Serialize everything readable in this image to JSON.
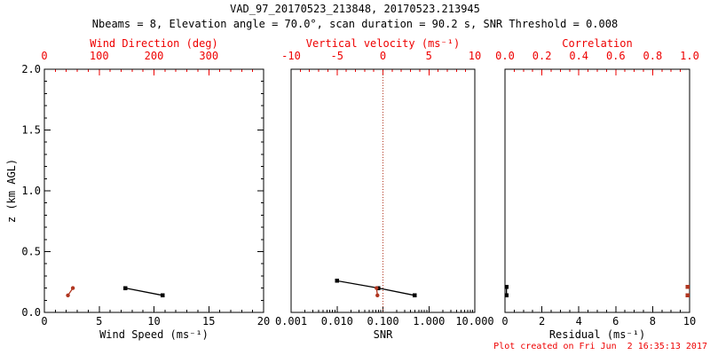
{
  "header": {
    "title": "VAD_97_20170523_213848, 20170523.213945",
    "subtitle": "Nbeams = 8, Elevation angle = 70.0°, scan duration = 90.2 s, SNR Threshold = 0.008"
  },
  "y_axis": {
    "title": "z (km AGL)",
    "min": 0,
    "max": 2,
    "major_ticks": [
      0,
      0.5,
      1,
      1.5,
      2
    ],
    "tick_labels": [
      "0.0",
      "0.5",
      "1.0",
      "1.5",
      "2.0"
    ],
    "minor_step": 0.1
  },
  "footer": {
    "timestamp": "Plot created on Fri Jun  2 16:35:13 2017"
  },
  "colors": {
    "axis_red": "#ee0000",
    "data_red": "#b0351f",
    "black": "#000000"
  },
  "chart_data": [
    {
      "id": "wind",
      "type": "line",
      "bottom_axis": {
        "label": "Wind Speed (ms⁻¹)",
        "min": 0,
        "max": 20,
        "log": false,
        "majors": [
          0,
          5,
          10,
          15,
          20
        ],
        "label_values": [
          0,
          5,
          10,
          15,
          20
        ],
        "labels": [
          "0",
          "5",
          "10",
          "15",
          "20"
        ],
        "minor_step": 1
      },
      "top_axis": {
        "label": "Wind Direction (deg)",
        "min": 0,
        "max": 400,
        "log": false,
        "majors": [
          0,
          100,
          200,
          300,
          400
        ],
        "label_values": [
          0,
          100,
          200,
          300
        ],
        "labels": [
          "0",
          "100",
          "200",
          "300"
        ],
        "minor_step": 20
      },
      "series": [
        {
          "name": "wind-speed",
          "axis": "bottom",
          "color": "black",
          "marker": "square",
          "connect": true,
          "points": [
            {
              "x": 7.4,
              "z": 0.2
            },
            {
              "x": 10.8,
              "z": 0.14
            }
          ]
        },
        {
          "name": "wind-direction",
          "axis": "top",
          "color": "red",
          "marker": "circle",
          "connect": true,
          "points": [
            {
              "x": 43,
              "z": 0.14
            },
            {
              "x": 52,
              "z": 0.2
            }
          ]
        }
      ]
    },
    {
      "id": "snr",
      "type": "line",
      "bottom_axis": {
        "label": "SNR",
        "min": 0.001,
        "max": 10,
        "log": true,
        "majors": [
          0.001,
          0.01,
          0.1,
          1,
          10
        ],
        "label_values": [
          0.001,
          0.01,
          0.1,
          1,
          10
        ],
        "labels": [
          "0.001",
          "0.010",
          "0.100",
          "1.000",
          "10.000"
        ]
      },
      "top_axis": {
        "label": "Vertical velocity (ms⁻¹)",
        "min": -10,
        "max": 10,
        "log": false,
        "majors": [
          -10,
          -5,
          0,
          5,
          10
        ],
        "label_values": [
          -10,
          -5,
          0,
          5,
          10
        ],
        "labels": [
          "-10",
          "-5",
          "0",
          "5",
          "10"
        ],
        "minor_step": 1
      },
      "refline": {
        "axis": "top",
        "value": 0,
        "style": "dotted",
        "color": "red"
      },
      "series": [
        {
          "name": "snr",
          "axis": "bottom",
          "color": "black",
          "marker": "square",
          "connect": true,
          "points": [
            {
              "x": 0.01,
              "z": 0.26
            },
            {
              "x": 0.08,
              "z": 0.2
            },
            {
              "x": 0.49,
              "z": 0.14
            }
          ]
        },
        {
          "name": "vertical-velocity",
          "axis": "top",
          "color": "red",
          "marker": "circle",
          "connect": true,
          "points": [
            {
              "x": -0.7,
              "z": 0.2
            },
            {
              "x": -0.6,
              "z": 0.14
            }
          ]
        }
      ]
    },
    {
      "id": "resid",
      "type": "line",
      "bottom_axis": {
        "label": "Residual (ms⁻¹)",
        "min": 0,
        "max": 10,
        "log": false,
        "majors": [
          0,
          2,
          4,
          6,
          8,
          10
        ],
        "label_values": [
          0,
          2,
          4,
          6,
          8,
          10
        ],
        "labels": [
          "0",
          "2",
          "4",
          "6",
          "8",
          "10"
        ],
        "minor_step": 0.5
      },
      "top_axis": {
        "label": "Correlation",
        "min": 0,
        "max": 1,
        "log": false,
        "majors": [
          0,
          0.2,
          0.4,
          0.6,
          0.8,
          1
        ],
        "label_values": [
          0,
          0.2,
          0.4,
          0.6,
          0.8,
          1
        ],
        "labels": [
          "0.0",
          "0.2",
          "0.4",
          "0.6",
          "0.8",
          "1.0"
        ],
        "minor_step": 0.05
      },
      "series": [
        {
          "name": "residual",
          "axis": "bottom",
          "color": "black",
          "marker": "square",
          "connect": true,
          "points": [
            {
              "x": 0.08,
              "z": 0.21
            },
            {
              "x": 0.08,
              "z": 0.14
            }
          ]
        },
        {
          "name": "correlation",
          "axis": "top",
          "color": "red",
          "marker": "square",
          "connect": false,
          "points": [
            {
              "x": 0.99,
              "z": 0.21
            },
            {
              "x": 0.99,
              "z": 0.14
            }
          ]
        }
      ]
    }
  ]
}
